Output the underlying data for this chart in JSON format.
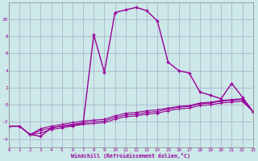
{
  "background_color": "#cce8e8",
  "line_color": "#990099",
  "grid_color": "#aaaacc",
  "xlabel": "Windchill (Refroidissement éolien,°C)",
  "xlim": [
    0,
    23
  ],
  "ylim": [
    -5,
    12
  ],
  "xticks": [
    0,
    1,
    2,
    3,
    4,
    5,
    6,
    7,
    8,
    9,
    10,
    11,
    12,
    13,
    14,
    15,
    16,
    17,
    18,
    19,
    20,
    21,
    22,
    23
  ],
  "yticks": [
    -4,
    -2,
    0,
    2,
    4,
    6,
    8,
    10
  ],
  "series": [
    {
      "x": [
        0,
        1,
        2,
        3,
        4,
        5,
        6,
        7,
        8,
        9,
        10,
        11,
        12,
        13,
        14,
        15,
        16,
        17,
        18,
        19,
        20,
        21,
        22,
        23
      ],
      "y": [
        -2.5,
        -2.5,
        -3.5,
        -3.7,
        -2.7,
        -2.5,
        -2.4,
        -2.2,
        8.2,
        3.8,
        10.8,
        11.1,
        11.4,
        11.0,
        9.8,
        5.0,
        4.0,
        3.7,
        1.5,
        1.1,
        0.7,
        2.5,
        0.9,
        -0.8
      ],
      "lw": 1.0,
      "ms": 3.5,
      "mew": 1.0
    },
    {
      "x": [
        0,
        1,
        2,
        3,
        4,
        5,
        6,
        7,
        8,
        9,
        10,
        11,
        12,
        13,
        14,
        15,
        16,
        17,
        18,
        19,
        20,
        21,
        22,
        23
      ],
      "y": [
        -2.5,
        -2.5,
        -3.5,
        -2.8,
        -2.5,
        -2.3,
        -2.1,
        -1.9,
        -1.8,
        -1.7,
        -1.3,
        -1.0,
        -0.9,
        -0.7,
        -0.6,
        -0.4,
        -0.2,
        -0.1,
        0.2,
        0.3,
        0.5,
        0.6,
        0.7,
        -0.8
      ],
      "lw": 0.8,
      "ms": 2.5,
      "mew": 0.7
    },
    {
      "x": [
        0,
        1,
        2,
        3,
        4,
        5,
        6,
        7,
        8,
        9,
        10,
        11,
        12,
        13,
        14,
        15,
        16,
        17,
        18,
        19,
        20,
        21,
        22,
        23
      ],
      "y": [
        -2.5,
        -2.5,
        -3.5,
        -3.0,
        -2.7,
        -2.5,
        -2.3,
        -2.1,
        -2.0,
        -1.9,
        -1.5,
        -1.2,
        -1.1,
        -0.9,
        -0.8,
        -0.5,
        -0.3,
        -0.2,
        0.1,
        0.2,
        0.4,
        0.5,
        0.6,
        -0.8
      ],
      "lw": 0.8,
      "ms": 2.5,
      "mew": 0.7
    },
    {
      "x": [
        0,
        1,
        2,
        3,
        4,
        5,
        6,
        7,
        8,
        9,
        10,
        11,
        12,
        13,
        14,
        15,
        16,
        17,
        18,
        19,
        20,
        21,
        22,
        23
      ],
      "y": [
        -2.5,
        -2.5,
        -3.5,
        -3.3,
        -2.9,
        -2.7,
        -2.5,
        -2.3,
        -2.2,
        -2.1,
        -1.7,
        -1.4,
        -1.3,
        -1.1,
        -1.0,
        -0.7,
        -0.5,
        -0.4,
        -0.1,
        0.0,
        0.2,
        0.3,
        0.4,
        -0.8
      ],
      "lw": 0.8,
      "ms": 2.5,
      "mew": 0.7
    }
  ]
}
